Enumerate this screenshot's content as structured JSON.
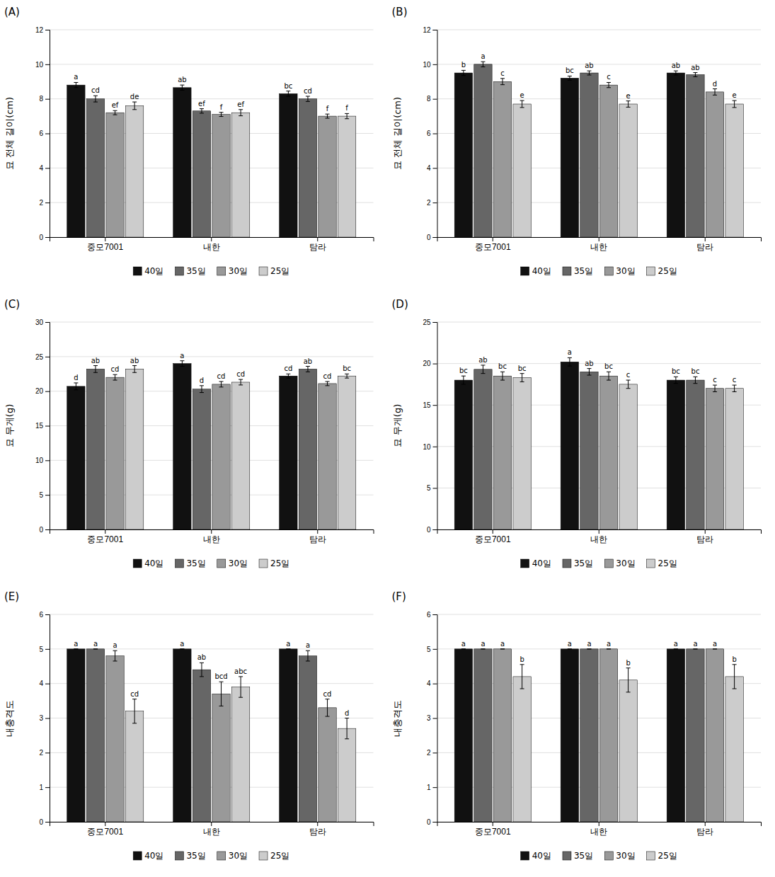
{
  "chart_data": [
    {
      "type": "bar",
      "title": "(A)",
      "y_label": "묘 전체 길이(cm)",
      "categories": [
        "중모7001",
        "내한",
        "탐라"
      ],
      "ylim": [
        0,
        12
      ],
      "yticks": [
        0,
        2,
        4,
        6,
        8,
        10,
        12
      ],
      "grid": true,
      "legend": "bottom",
      "series": [
        {
          "name": "40일",
          "color": "#111111",
          "values": [
            8.8,
            8.65,
            8.3
          ],
          "errors": [
            0.15,
            0.15,
            0.15
          ],
          "annotations": [
            "a",
            "ab",
            "bc"
          ]
        },
        {
          "name": "35일",
          "color": "#666666",
          "values": [
            8.0,
            7.3,
            8.0
          ],
          "errors": [
            0.18,
            0.13,
            0.15
          ],
          "annotations": [
            "cd",
            "ef",
            "cd"
          ]
        },
        {
          "name": "30일",
          "color": "#999999",
          "values": [
            7.2,
            7.1,
            7.0
          ],
          "errors": [
            0.12,
            0.12,
            0.12
          ],
          "annotations": [
            "ef",
            "f",
            "f"
          ]
        },
        {
          "name": "25일",
          "color": "#cccccc",
          "values": [
            7.6,
            7.2,
            7.0
          ],
          "errors": [
            0.22,
            0.18,
            0.15
          ],
          "annotations": [
            "de",
            "ef",
            "f"
          ]
        }
      ]
    },
    {
      "type": "bar",
      "title": "(B)",
      "y_label": "묘 전체 길이(cm)",
      "categories": [
        "중모7001",
        "내한",
        "탐라"
      ],
      "ylim": [
        0,
        12
      ],
      "yticks": [
        0,
        2,
        4,
        6,
        8,
        10,
        12
      ],
      "grid": true,
      "legend": "bottom",
      "series": [
        {
          "name": "40일",
          "color": "#111111",
          "values": [
            9.5,
            9.2,
            9.5
          ],
          "errors": [
            0.15,
            0.12,
            0.12
          ],
          "annotations": [
            "b",
            "bc",
            "ab"
          ]
        },
        {
          "name": "35일",
          "color": "#666666",
          "values": [
            10.0,
            9.5,
            9.4
          ],
          "errors": [
            0.15,
            0.12,
            0.12
          ],
          "annotations": [
            "a",
            "ab",
            "ab"
          ]
        },
        {
          "name": "30일",
          "color": "#999999",
          "values": [
            9.0,
            8.8,
            8.4
          ],
          "errors": [
            0.18,
            0.15,
            0.18
          ],
          "annotations": [
            "c",
            "c",
            "d"
          ]
        },
        {
          "name": "25일",
          "color": "#cccccc",
          "values": [
            7.7,
            7.7,
            7.7
          ],
          "errors": [
            0.2,
            0.18,
            0.2
          ],
          "annotations": [
            "e",
            "e",
            "e"
          ]
        }
      ]
    },
    {
      "type": "bar",
      "title": "(C)",
      "y_label": "묘 무게(g)",
      "categories": [
        "중모7001",
        "내한",
        "탐라"
      ],
      "ylim": [
        0,
        30
      ],
      "yticks": [
        0,
        5,
        10,
        15,
        20,
        25,
        30
      ],
      "grid": true,
      "legend": "bottom",
      "series": [
        {
          "name": "40일",
          "color": "#111111",
          "values": [
            20.7,
            24.0,
            22.2
          ],
          "errors": [
            0.5,
            0.4,
            0.3
          ],
          "annotations": [
            "d",
            "a",
            "cd"
          ]
        },
        {
          "name": "35일",
          "color": "#666666",
          "values": [
            23.2,
            20.3,
            23.2
          ],
          "errors": [
            0.5,
            0.5,
            0.4
          ],
          "annotations": [
            "ab",
            "d",
            "ab"
          ]
        },
        {
          "name": "30일",
          "color": "#999999",
          "values": [
            22.0,
            21.0,
            21.1
          ],
          "errors": [
            0.4,
            0.4,
            0.3
          ],
          "annotations": [
            "cd",
            "cd",
            "cd"
          ]
        },
        {
          "name": "25일",
          "color": "#cccccc",
          "values": [
            23.2,
            21.3,
            22.2
          ],
          "errors": [
            0.5,
            0.4,
            0.3
          ],
          "annotations": [
            "ab",
            "cd",
            "bc"
          ]
        }
      ]
    },
    {
      "type": "bar",
      "title": "(D)",
      "y_label": "묘 무게(g)",
      "categories": [
        "중모7001",
        "내한",
        "탐라"
      ],
      "ylim": [
        0,
        25
      ],
      "yticks": [
        0,
        5,
        10,
        15,
        20,
        25
      ],
      "grid": true,
      "legend": "bottom",
      "series": [
        {
          "name": "40일",
          "color": "#111111",
          "values": [
            18.0,
            20.2,
            18.0
          ],
          "errors": [
            0.5,
            0.5,
            0.4
          ],
          "annotations": [
            "bc",
            "a",
            "bc"
          ]
        },
        {
          "name": "35일",
          "color": "#666666",
          "values": [
            19.3,
            19.0,
            18.0
          ],
          "errors": [
            0.5,
            0.4,
            0.4
          ],
          "annotations": [
            "ab",
            "ab",
            "bc"
          ]
        },
        {
          "name": "30일",
          "color": "#999999",
          "values": [
            18.5,
            18.5,
            17.0
          ],
          "errors": [
            0.5,
            0.5,
            0.4
          ],
          "annotations": [
            "bc",
            "bc",
            "c"
          ]
        },
        {
          "name": "25일",
          "color": "#cccccc",
          "values": [
            18.3,
            17.5,
            17.0
          ],
          "errors": [
            0.5,
            0.5,
            0.4
          ],
          "annotations": [
            "bc",
            "c",
            "c"
          ]
        }
      ]
    },
    {
      "type": "bar",
      "title": "(E)",
      "y_label": "내충격도",
      "categories": [
        "중모7001",
        "내한",
        "탐라"
      ],
      "ylim": [
        0,
        6
      ],
      "yticks": [
        0,
        1,
        2,
        3,
        4,
        5,
        6
      ],
      "grid": true,
      "legend": "bottom",
      "series": [
        {
          "name": "40일",
          "color": "#111111",
          "values": [
            5.0,
            5.0,
            5.0
          ],
          "errors": [
            0.0,
            0.0,
            0.0
          ],
          "annotations": [
            "a",
            "a",
            "a"
          ]
        },
        {
          "name": "35일",
          "color": "#666666",
          "values": [
            5.0,
            4.4,
            4.8
          ],
          "errors": [
            0.0,
            0.2,
            0.15
          ],
          "annotations": [
            "a",
            "ab",
            "a"
          ]
        },
        {
          "name": "30일",
          "color": "#999999",
          "values": [
            4.8,
            3.7,
            3.3
          ],
          "errors": [
            0.15,
            0.35,
            0.25
          ],
          "annotations": [
            "a",
            "bcd",
            "cd"
          ]
        },
        {
          "name": "25일",
          "color": "#cccccc",
          "values": [
            3.2,
            3.9,
            2.7
          ],
          "errors": [
            0.35,
            0.3,
            0.3
          ],
          "annotations": [
            "cd",
            "abc",
            "d"
          ]
        }
      ]
    },
    {
      "type": "bar",
      "title": "(F)",
      "y_label": "내충격도",
      "categories": [
        "중모7001",
        "내한",
        "탐라"
      ],
      "ylim": [
        0,
        6
      ],
      "yticks": [
        0,
        1,
        2,
        3,
        4,
        5,
        6
      ],
      "grid": true,
      "legend": "bottom",
      "series": [
        {
          "name": "40일",
          "color": "#111111",
          "values": [
            5.0,
            5.0,
            5.0
          ],
          "errors": [
            0.0,
            0.0,
            0.0
          ],
          "annotations": [
            "a",
            "a",
            "a"
          ]
        },
        {
          "name": "35일",
          "color": "#666666",
          "values": [
            5.0,
            5.0,
            5.0
          ],
          "errors": [
            0.0,
            0.0,
            0.0
          ],
          "annotations": [
            "a",
            "a",
            "a"
          ]
        },
        {
          "name": "30일",
          "color": "#999999",
          "values": [
            5.0,
            5.0,
            5.0
          ],
          "errors": [
            0.0,
            0.0,
            0.0
          ],
          "annotations": [
            "a",
            "a",
            "a"
          ]
        },
        {
          "name": "25일",
          "color": "#cccccc",
          "values": [
            4.2,
            4.1,
            4.2
          ],
          "errors": [
            0.35,
            0.35,
            0.35
          ],
          "annotations": [
            "b",
            "b",
            "b"
          ]
        }
      ]
    }
  ]
}
